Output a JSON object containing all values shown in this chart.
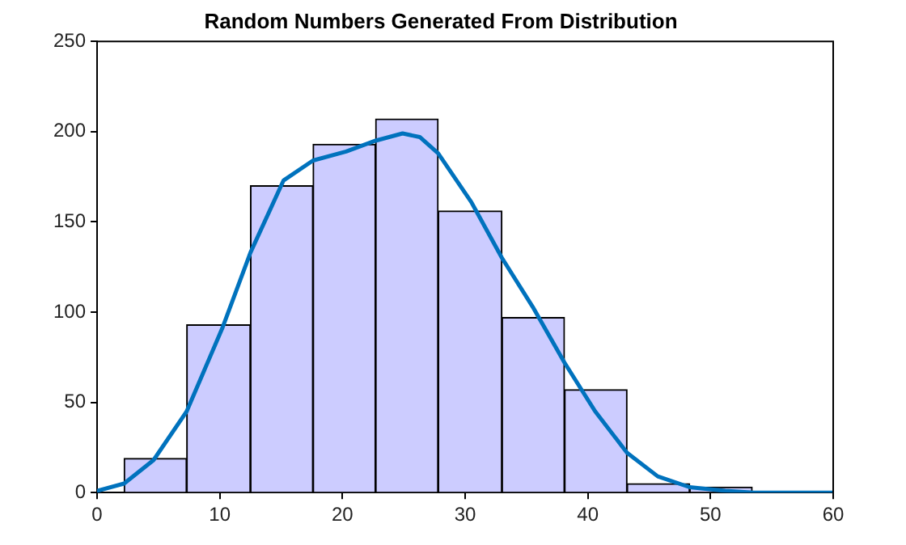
{
  "chart_data": {
    "type": "histogram",
    "title": "Random Numbers Generated From Distribution",
    "xlim": [
      0,
      60
    ],
    "xticks": [
      0,
      10,
      20,
      30,
      40,
      50,
      60
    ],
    "ylim": [
      0,
      250
    ],
    "yticks": [
      0,
      50,
      100,
      150,
      200,
      250
    ],
    "grid": false,
    "legend": false,
    "series": [
      {
        "color": "#ccccff",
        "bins": [
          2.2,
          7.3,
          12.5,
          17.6,
          22.7,
          27.8,
          33.0,
          38.1,
          43.2,
          48.3,
          53.4
        ],
        "values": [
          19,
          93,
          170,
          193,
          207,
          156,
          97,
          57,
          5,
          3
        ]
      },
      {
        "type": "line",
        "color": "#0072bd",
        "x": [
          0,
          2.2,
          4.6,
          7.3,
          10.2,
          12.5,
          15.2,
          17.6,
          20.3,
          22.7,
          24.9,
          26.3,
          27.8,
          30.5,
          33,
          35.5,
          38.1,
          40.6,
          43.2,
          45.7,
          48.3,
          51.2,
          53.5,
          60
        ],
        "values": [
          1,
          5,
          18,
          45,
          91,
          133,
          173,
          184,
          189,
          195,
          199,
          197,
          188,
          161,
          130,
          103,
          72,
          45,
          22,
          9,
          3,
          1,
          0,
          0
        ]
      }
    ]
  }
}
